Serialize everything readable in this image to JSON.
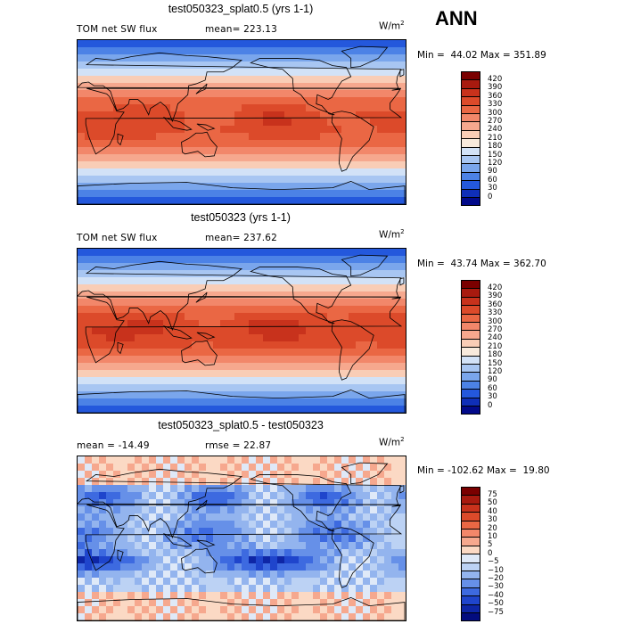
{
  "header": {
    "season": "ANN"
  },
  "panels": [
    {
      "title": "test050323_splat0.5 (yrs 1-1)",
      "left_text": "TOM net SW flux",
      "mid_text": "mean= 223.13",
      "units": "W/m",
      "units_sup": "2",
      "minmax": "Min =  44.02 Max = 351.89",
      "levels": [
        "420",
        "390",
        "360",
        "330",
        "300",
        "270",
        "240",
        "210",
        "180",
        "150",
        "120",
        "90",
        "60",
        "30",
        "0"
      ],
      "colors": [
        "#7a0000",
        "#a81a0f",
        "#c8321c",
        "#dc4a2a",
        "#ea6744",
        "#f2876a",
        "#f6a88e",
        "#f9cdb6",
        "#f8eadc",
        "#d2e2f7",
        "#a8c6f2",
        "#7aa6ec",
        "#4c82e6",
        "#2458dc",
        "#0f2fb8",
        "#020a8a"
      ]
    },
    {
      "title": "test050323 (yrs 1-1)",
      "left_text": "TOM net SW flux",
      "mid_text": "mean= 237.62",
      "units": "W/m",
      "units_sup": "2",
      "minmax": "Min =  43.74 Max = 362.70",
      "levels": [
        "420",
        "390",
        "360",
        "330",
        "300",
        "270",
        "240",
        "210",
        "180",
        "150",
        "120",
        "90",
        "60",
        "30",
        "0"
      ],
      "colors": [
        "#7a0000",
        "#a81a0f",
        "#c8321c",
        "#dc4a2a",
        "#ea6744",
        "#f2876a",
        "#f6a88e",
        "#f9cdb6",
        "#f8eadc",
        "#d2e2f7",
        "#a8c6f2",
        "#7aa6ec",
        "#4c82e6",
        "#2458dc",
        "#0f2fb8",
        "#020a8a"
      ]
    },
    {
      "title": "test050323_splat0.5 - test050323",
      "left_text": "mean = -14.49",
      "mid_text": "rmse =  22.87",
      "units": "W/m",
      "units_sup": "2",
      "minmax": "Min = -102.62 Max =  19.80",
      "levels": [
        "75",
        "50",
        "40",
        "30",
        "20",
        "10",
        "5",
        "0",
        "−5",
        "−10",
        "−20",
        "−30",
        "−40",
        "−50",
        "−75"
      ],
      "colors": [
        "#7a0000",
        "#a81a0f",
        "#c8321c",
        "#dc4a2a",
        "#ea6744",
        "#f2876a",
        "#f6a88e",
        "#fbd9c4",
        "#dfe9f8",
        "#bcd2f4",
        "#93b4ee",
        "#6690e8",
        "#3d6ae0",
        "#1f45cc",
        "#0e26a6",
        "#030c7e"
      ]
    }
  ]
}
